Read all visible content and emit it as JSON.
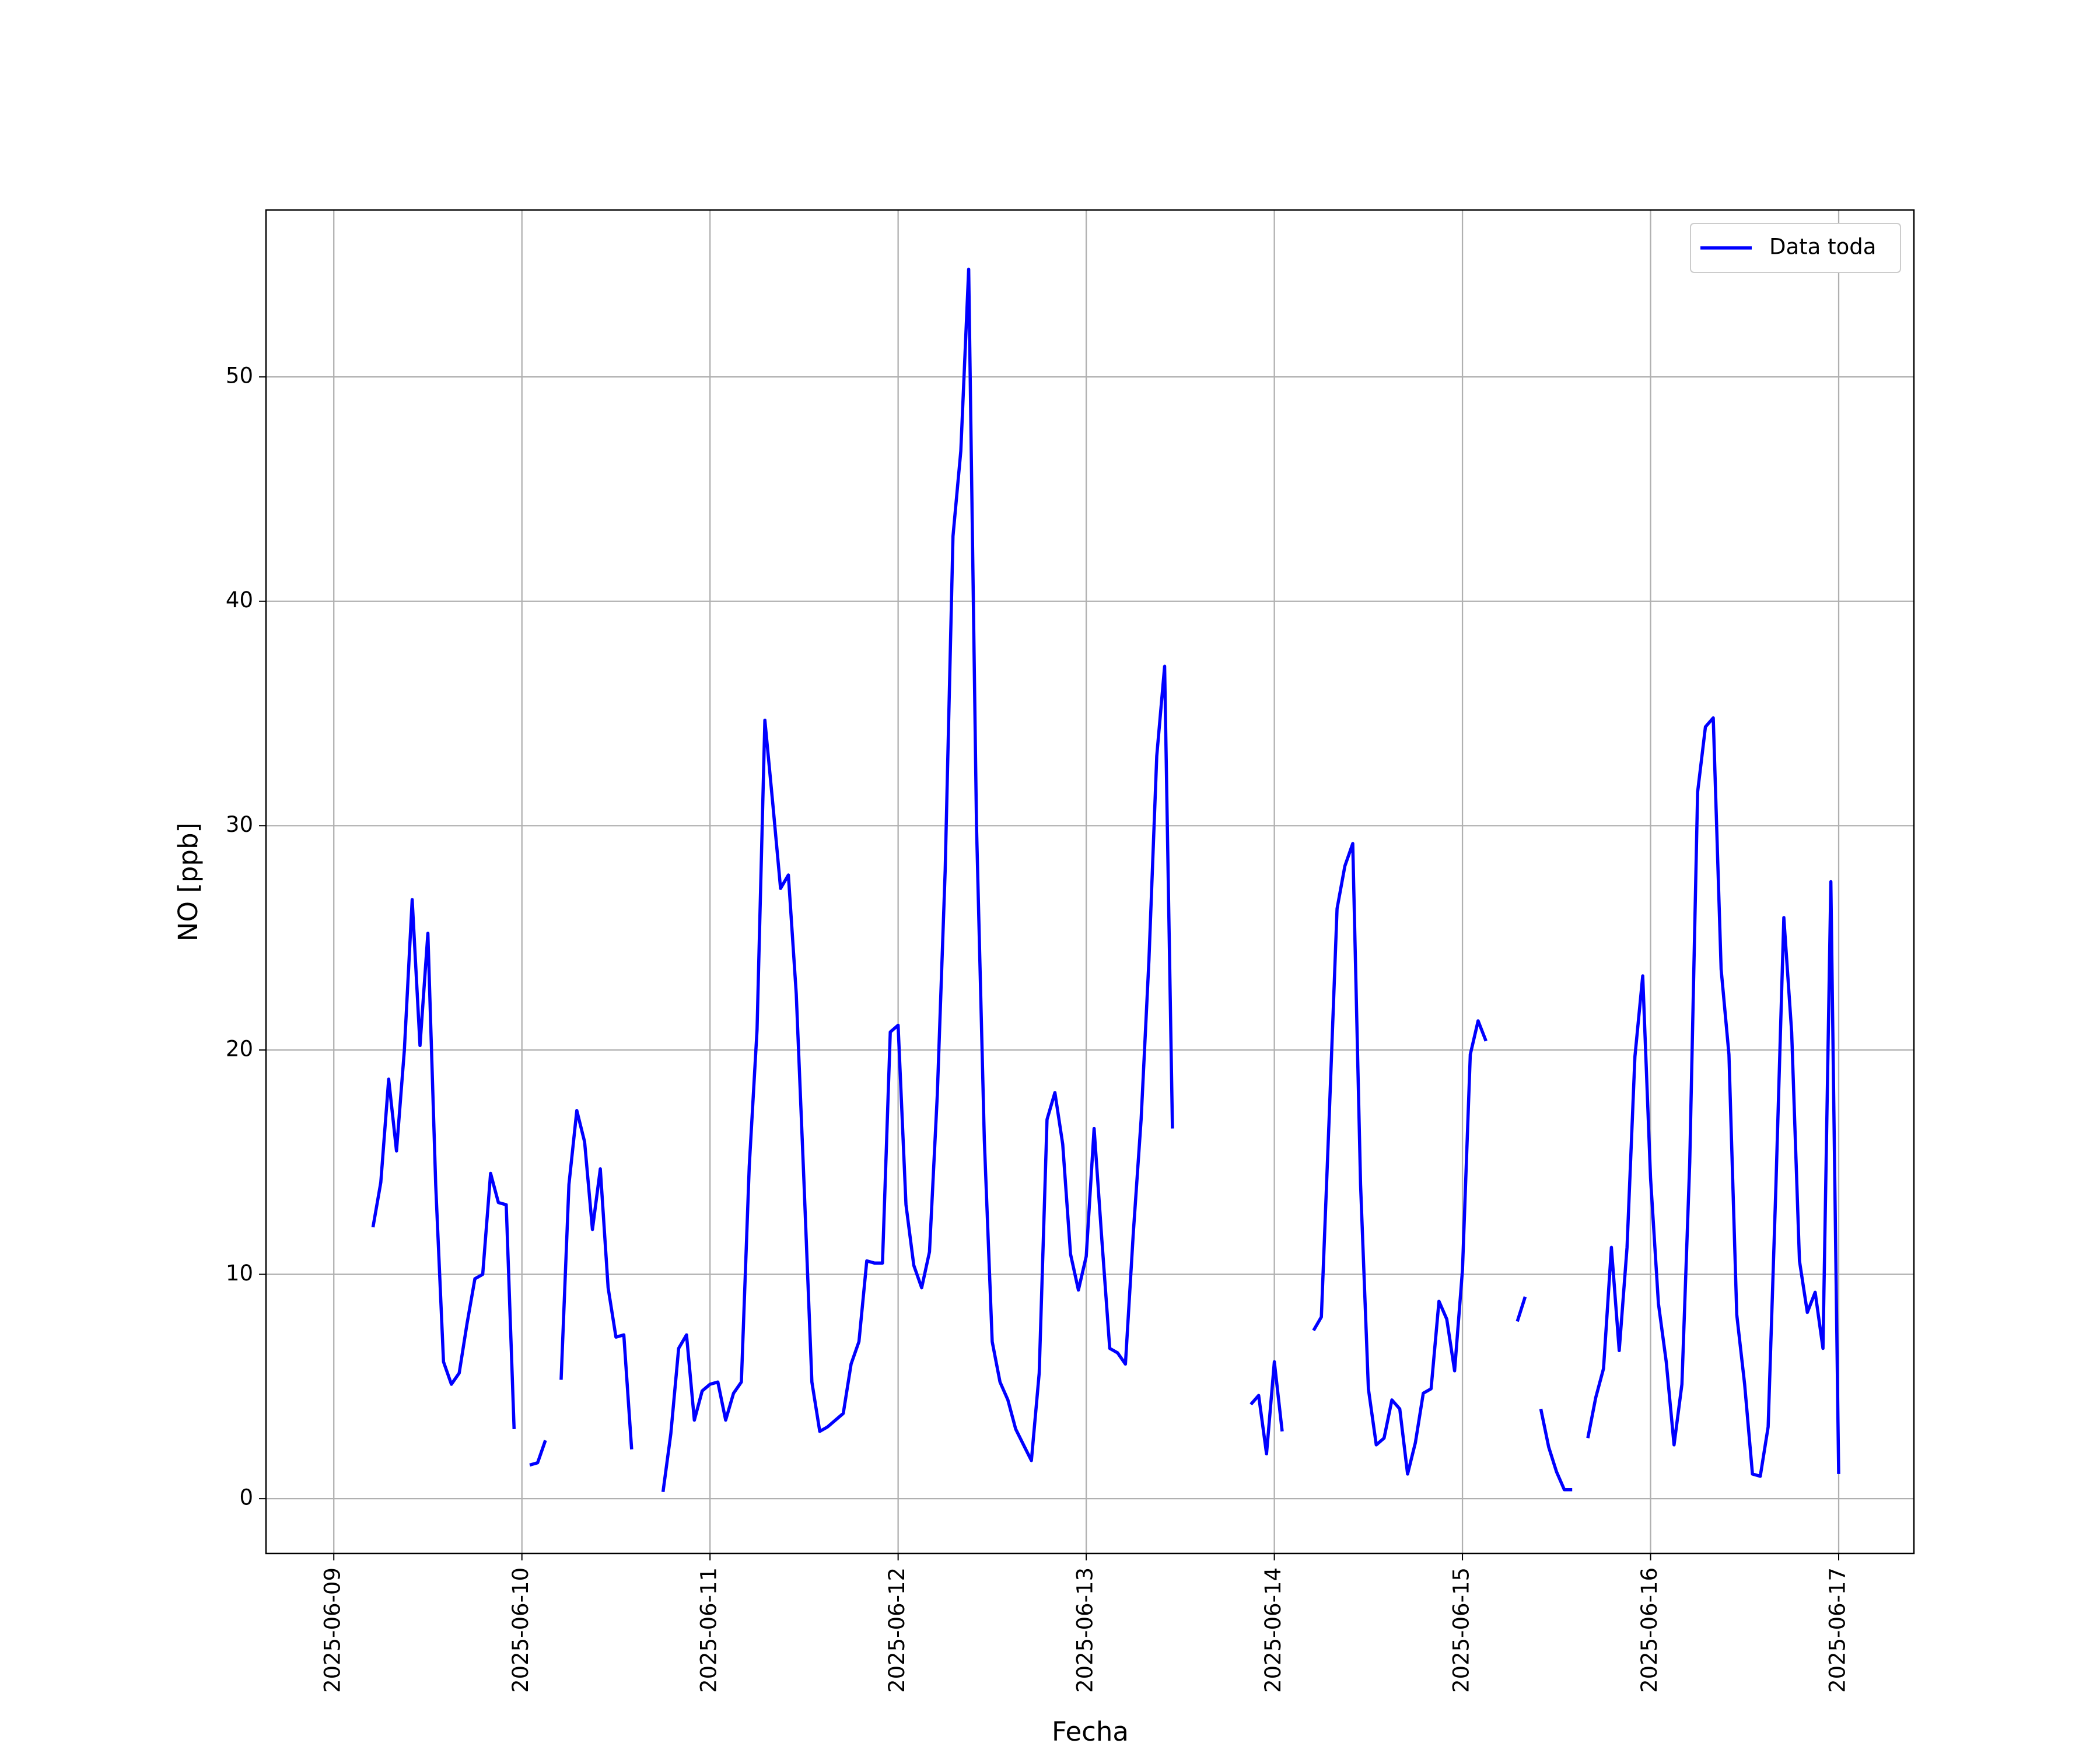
{
  "chart_data": {
    "type": "line",
    "x_label": "Fecha",
    "y_label": "NO [ppb]",
    "xlim": [
      "2025-06-08 15:21",
      "2025-06-17 09:36"
    ],
    "xticks": [
      "2025-06-09",
      "2025-06-10",
      "2025-06-11",
      "2025-06-12",
      "2025-06-13",
      "2025-06-14",
      "2025-06-15",
      "2025-06-16",
      "2025-06-17"
    ],
    "ylim": [
      -2.44,
      57.44
    ],
    "yticks": [
      0,
      10,
      20,
      30,
      40,
      50
    ],
    "grid": true,
    "legend": "upper right",
    "x": [
      "2025-06-09 05:00",
      "2025-06-09 06:00",
      "2025-06-09 07:00",
      "2025-06-09 08:00",
      "2025-06-09 09:00",
      "2025-06-09 10:00",
      "2025-06-09 11:00",
      "2025-06-09 12:00",
      "2025-06-09 13:00",
      "2025-06-09 14:00",
      "2025-06-09 15:00",
      "2025-06-09 16:00",
      "2025-06-09 17:00",
      "2025-06-09 18:00",
      "2025-06-09 19:00",
      "2025-06-09 20:00",
      "2025-06-09 21:00",
      "2025-06-09 22:00",
      "2025-06-09 23:00",
      "2025-06-10 00:00",
      "2025-06-10 01:00",
      "2025-06-10 02:00",
      "2025-06-10 03:00",
      "2025-06-10 04:00",
      "2025-06-10 05:00",
      "2025-06-10 06:00",
      "2025-06-10 07:00",
      "2025-06-10 08:00",
      "2025-06-10 09:00",
      "2025-06-10 10:00",
      "2025-06-10 11:00",
      "2025-06-10 12:00",
      "2025-06-10 13:00",
      "2025-06-10 14:00",
      "2025-06-10 15:00",
      "2025-06-10 18:00",
      "2025-06-10 19:00",
      "2025-06-10 20:00",
      "2025-06-10 21:00",
      "2025-06-10 22:00",
      "2025-06-10 23:00",
      "2025-06-11 00:00",
      "2025-06-11 01:00",
      "2025-06-11 02:00",
      "2025-06-11 03:00",
      "2025-06-11 04:00",
      "2025-06-11 05:00",
      "2025-06-11 06:00",
      "2025-06-11 07:00",
      "2025-06-11 08:00",
      "2025-06-11 09:00",
      "2025-06-11 10:00",
      "2025-06-11 11:00",
      "2025-06-11 12:00",
      "2025-06-11 13:00",
      "2025-06-11 14:00",
      "2025-06-11 15:00",
      "2025-06-11 16:00",
      "2025-06-11 17:00",
      "2025-06-11 18:00",
      "2025-06-11 19:00",
      "2025-06-11 20:00",
      "2025-06-11 21:00",
      "2025-06-11 22:00",
      "2025-06-11 23:00",
      "2025-06-12 00:00",
      "2025-06-12 01:00",
      "2025-06-12 02:00",
      "2025-06-12 03:00",
      "2025-06-12 04:00",
      "2025-06-12 05:00",
      "2025-06-12 06:00",
      "2025-06-12 07:00",
      "2025-06-12 08:00",
      "2025-06-12 09:00",
      "2025-06-12 10:00",
      "2025-06-12 11:00",
      "2025-06-12 12:00",
      "2025-06-12 13:00",
      "2025-06-12 14:00",
      "2025-06-12 15:00",
      "2025-06-12 16:00",
      "2025-06-12 17:00",
      "2025-06-12 18:00",
      "2025-06-12 19:00",
      "2025-06-12 20:00",
      "2025-06-12 21:00",
      "2025-06-12 22:00",
      "2025-06-12 23:00",
      "2025-06-13 00:00",
      "2025-06-13 01:00",
      "2025-06-13 02:00",
      "2025-06-13 03:00",
      "2025-06-13 04:00",
      "2025-06-13 05:00",
      "2025-06-13 06:00",
      "2025-06-13 07:00",
      "2025-06-13 08:00",
      "2025-06-13 09:00",
      "2025-06-13 10:00",
      "2025-06-13 11:00",
      "2025-06-13 12:00",
      "2025-06-13 21:00",
      "2025-06-13 22:00",
      "2025-06-13 23:00",
      "2025-06-14 00:00",
      "2025-06-14 01:00",
      "2025-06-14 02:00",
      "2025-06-14 05:00",
      "2025-06-14 06:00",
      "2025-06-14 07:00",
      "2025-06-14 08:00",
      "2025-06-14 09:00",
      "2025-06-14 10:00",
      "2025-06-14 11:00",
      "2025-06-14 12:00",
      "2025-06-14 13:00",
      "2025-06-14 14:00",
      "2025-06-14 15:00",
      "2025-06-14 16:00",
      "2025-06-14 17:00",
      "2025-06-14 18:00",
      "2025-06-14 19:00",
      "2025-06-14 20:00",
      "2025-06-14 21:00",
      "2025-06-14 22:00",
      "2025-06-14 23:00",
      "2025-06-15 00:00",
      "2025-06-15 01:00",
      "2025-06-15 02:00",
      "2025-06-15 03:00",
      "2025-06-15 04:00",
      "2025-06-15 07:00",
      "2025-06-15 08:00",
      "2025-06-15 09:00",
      "2025-06-15 10:00",
      "2025-06-15 11:00",
      "2025-06-15 12:00",
      "2025-06-15 13:00",
      "2025-06-15 14:00",
      "2025-06-15 15:00",
      "2025-06-15 16:00",
      "2025-06-15 17:00",
      "2025-06-15 18:00",
      "2025-06-15 19:00",
      "2025-06-15 20:00",
      "2025-06-15 21:00",
      "2025-06-15 22:00",
      "2025-06-15 23:00",
      "2025-06-16 00:00",
      "2025-06-16 01:00",
      "2025-06-16 02:00",
      "2025-06-16 03:00",
      "2025-06-16 04:00",
      "2025-06-16 05:00",
      "2025-06-16 06:00",
      "2025-06-16 07:00",
      "2025-06-16 08:00",
      "2025-06-16 09:00",
      "2025-06-16 10:00",
      "2025-06-16 11:00",
      "2025-06-16 12:00",
      "2025-06-16 13:00",
      "2025-06-16 14:00",
      "2025-06-16 15:00",
      "2025-06-16 16:00",
      "2025-06-16 17:00",
      "2025-06-16 18:00",
      "2025-06-16 19:00",
      "2025-06-16 20:00",
      "2025-06-16 21:00",
      "2025-06-16 22:00",
      "2025-06-16 23:00",
      "2025-06-17 00:00"
    ],
    "series": [
      {
        "name": "Data toda",
        "color": "#0000ff",
        "values": [
          12.1,
          14.1,
          18.7,
          15.5,
          20,
          26.7,
          20.2,
          25.2,
          14,
          6.1,
          5.1,
          5.6,
          7.8,
          9.8,
          10,
          14.5,
          13.2,
          13.1,
          3.1,
          null,
          1.5,
          1.6,
          2.6,
          null,
          5.3,
          14,
          17.3,
          15.9,
          12,
          14.7,
          9.4,
          7.2,
          7.3,
          2.2,
          null,
          0.3,
          2.9,
          6.7,
          7.3,
          3.5,
          4.8,
          5.1,
          5.2,
          3.5,
          4.7,
          5.2,
          14.8,
          20.9,
          34.7,
          31,
          27.2,
          27.8,
          22.5,
          14,
          5.2,
          3,
          3.2,
          3.5,
          3.8,
          6,
          7,
          10.6,
          10.5,
          10.5,
          20.8,
          21.1,
          13.1,
          10.4,
          9.4,
          11,
          18,
          28,
          42.9,
          46.7,
          54.8,
          30,
          16,
          7,
          5.2,
          4.4,
          3.1,
          2.4,
          1.7,
          5.6,
          16.9,
          18.1,
          15.8,
          10.9,
          9.3,
          10.8,
          16.5,
          11.5,
          6.7,
          6.5,
          6,
          11.8,
          16.9,
          24,
          33.1,
          37.1,
          16.5,
          null,
          4.2,
          4.6,
          2,
          6.1,
          3,
          null,
          7.5,
          8.1,
          17,
          26.3,
          28.2,
          29.2,
          14,
          4.9,
          2.4,
          2.7,
          4.4,
          4,
          1.1,
          2.5,
          4.7,
          4.9,
          8.8,
          8,
          5.7,
          10.2,
          19.8,
          21.3,
          20.4,
          null,
          7.9,
          9,
          null,
          4,
          2.3,
          1.2,
          0.4,
          0.4,
          null,
          2.7,
          4.5,
          5.8,
          11.2,
          6.6,
          11.2,
          19.7,
          23.3,
          14.3,
          8.7,
          6.1,
          2.4,
          5.1,
          15,
          31.5,
          34.4,
          34.8,
          23.6,
          19.8,
          8.2,
          5.1,
          1.1,
          1,
          3.2,
          14,
          25.9,
          20.8,
          10.6,
          8.3,
          9.2,
          6.7,
          27.5,
          1.1
        ]
      }
    ]
  }
}
